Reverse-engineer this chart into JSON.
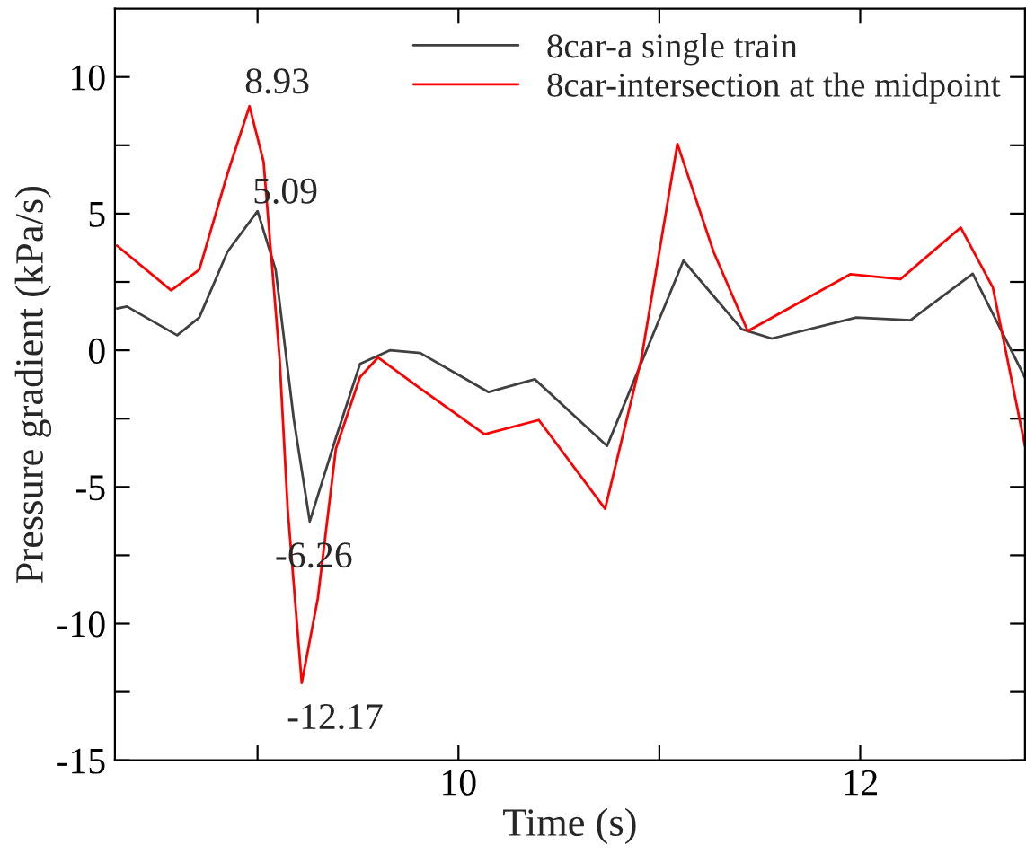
{
  "chart_data": {
    "type": "line",
    "xlabel": "Time (s)",
    "ylabel": "Pressure gradient (kPa/s)",
    "xlim": [
      8.29,
      12.82
    ],
    "ylim": [
      -15,
      12.5
    ],
    "xticks": [
      {
        "value": 9,
        "label": null
      },
      10,
      {
        "value": 11,
        "label": null
      },
      12
    ],
    "yticks": [
      -15,
      {
        "value": -12.5,
        "label": null
      },
      -10,
      {
        "value": -7.5,
        "label": null
      },
      -5,
      {
        "value": -2.5,
        "label": null
      },
      0,
      {
        "value": 2.5,
        "label": null
      },
      5,
      {
        "value": 7.5,
        "label": null
      },
      10
    ],
    "grid": false,
    "legend": "top right",
    "line_style": "solid",
    "marker": "none",
    "series": [
      {
        "name": "8car-a single train",
        "color": "#404040",
        "x": [
          8.3,
          8.35,
          8.6,
          8.71,
          8.85,
          9.0,
          9.09,
          9.18,
          9.26,
          9.39,
          9.51,
          9.66,
          9.81,
          10.15,
          10.38,
          10.74,
          11.12,
          11.41,
          11.56,
          11.98,
          12.25,
          12.56,
          12.82
        ],
        "values": [
          1.53,
          1.6,
          0.55,
          1.2,
          3.6,
          5.09,
          2.95,
          -2.5,
          -6.26,
          -3.2,
          -0.5,
          0.0,
          -0.1,
          -1.53,
          -1.06,
          -3.5,
          3.28,
          0.77,
          0.43,
          1.2,
          1.1,
          2.8,
          -1.0
        ]
      },
      {
        "name": "8car-intersection at the midpoint",
        "color": "#ff0000",
        "x": [
          8.3,
          8.57,
          8.71,
          8.85,
          8.96,
          9.03,
          9.11,
          9.15,
          9.22,
          9.3,
          9.39,
          9.51,
          9.6,
          9.81,
          10.13,
          10.4,
          10.73,
          10.91,
          11.09,
          11.27,
          11.44,
          11.95,
          12.2,
          12.5,
          12.66,
          12.82
        ],
        "values": [
          3.83,
          2.19,
          2.95,
          6.45,
          8.93,
          6.9,
          -0.33,
          -5.8,
          -12.17,
          -9.08,
          -3.6,
          -0.98,
          -0.26,
          -1.4,
          -3.07,
          -2.55,
          -5.8,
          -0.33,
          7.55,
          3.6,
          0.7,
          2.78,
          2.6,
          4.49,
          2.3,
          -3.5
        ]
      }
    ],
    "annotations": [
      {
        "text": "8.93",
        "x": 8.96,
        "y": 8.93
      },
      {
        "text": "5.09",
        "x": 9.0,
        "y": 5.09
      },
      {
        "text": "-6.26",
        "x": 9.26,
        "y": -6.26
      },
      {
        "text": "-12.17",
        "x": 9.22,
        "y": -12.17
      }
    ]
  }
}
